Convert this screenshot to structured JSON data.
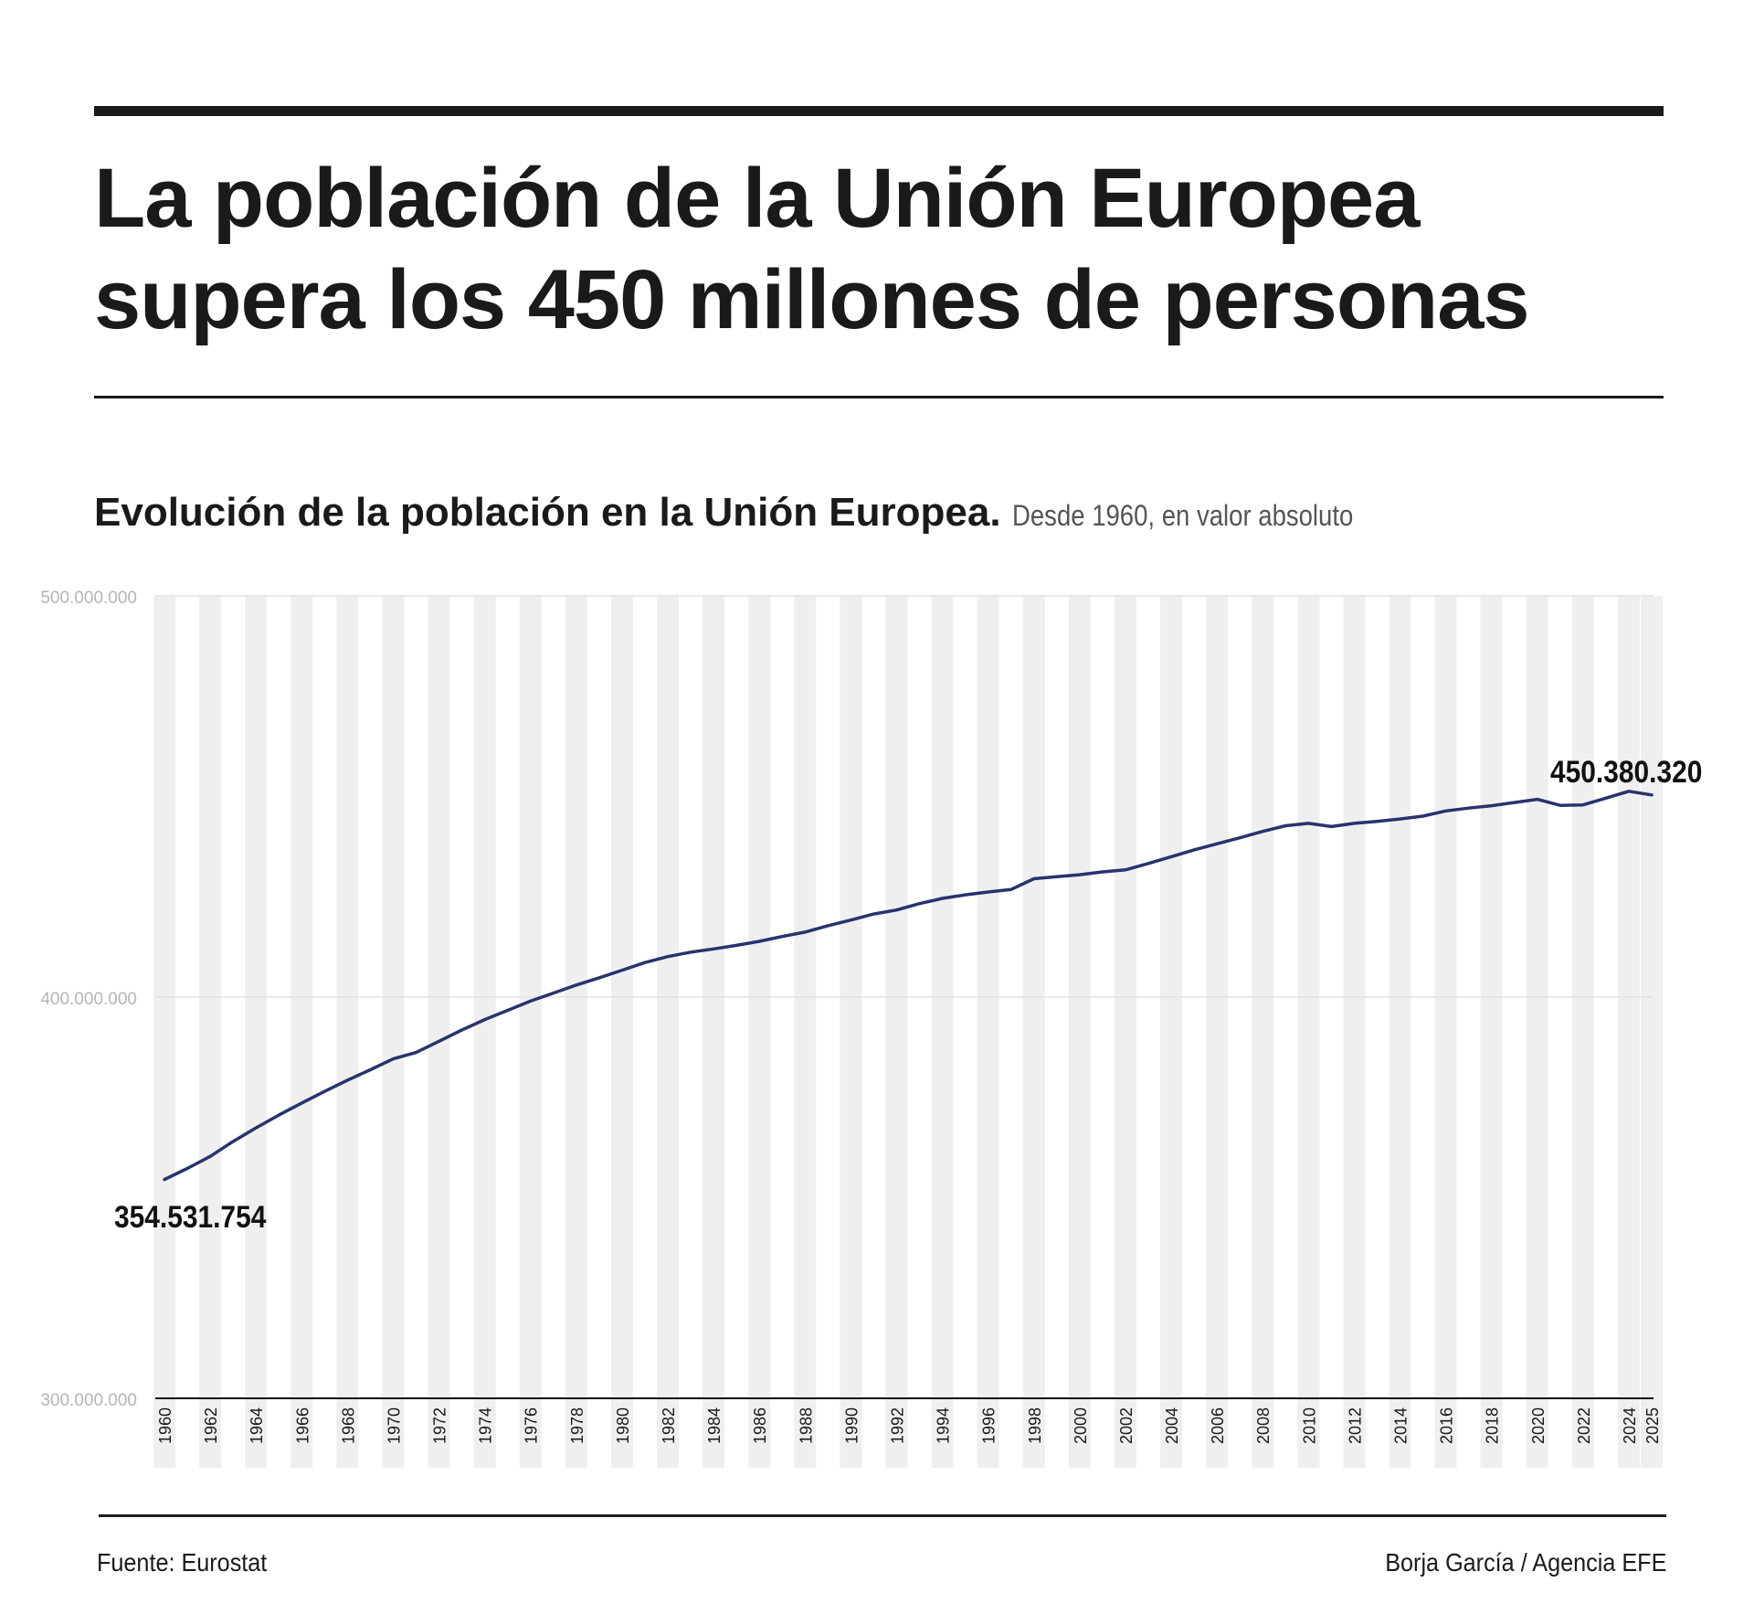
{
  "headline": {
    "line1": "La población de la Unión Europea",
    "line2": "supera los 450 millones de personas"
  },
  "chart_heading": {
    "title": "Evolución de la población en la Unión Europea.",
    "subtitle": "Desde 1960, en valor absoluto"
  },
  "footer": {
    "source": "Fuente: Eurostat",
    "credit": "Borja García / Agencia EFE"
  },
  "chart_data": {
    "type": "line",
    "title": "Evolución de la población en la Unión Europea.",
    "subtitle": "Desde 1960, en valor absoluto",
    "xlabel": "",
    "ylabel": "",
    "ylim": [
      300000000,
      500000000
    ],
    "yticks": [
      {
        "value": 300000000,
        "label": "300.000.000"
      },
      {
        "value": 400000000,
        "label": "400.000.000"
      },
      {
        "value": 500000000,
        "label": "500.000.000"
      }
    ],
    "grid": true,
    "line_color": "#28336e",
    "stripe_color": "#efefef",
    "x": [
      1960,
      1961,
      1962,
      1963,
      1964,
      1965,
      1966,
      1967,
      1968,
      1969,
      1970,
      1971,
      1972,
      1973,
      1974,
      1975,
      1976,
      1977,
      1978,
      1979,
      1980,
      1981,
      1982,
      1983,
      1984,
      1985,
      1986,
      1987,
      1988,
      1989,
      1990,
      1991,
      1992,
      1993,
      1994,
      1995,
      1996,
      1997,
      1998,
      1999,
      2000,
      2001,
      2002,
      2003,
      2004,
      2005,
      2006,
      2007,
      2008,
      2009,
      2010,
      2011,
      2012,
      2013,
      2014,
      2015,
      2016,
      2017,
      2018,
      2019,
      2020,
      2021,
      2022,
      2023,
      2024,
      2025
    ],
    "xtick_labels": [
      "1960",
      "1962",
      "1964",
      "1966",
      "1968",
      "1970",
      "1972",
      "1974",
      "1976",
      "1978",
      "1980",
      "1982",
      "1984",
      "1986",
      "1988",
      "1990",
      "1992",
      "1994",
      "1996",
      "1998",
      "2000",
      "2002",
      "2004",
      "2006",
      "2008",
      "2010",
      "2012",
      "2014",
      "2016",
      "2018",
      "2020",
      "2022",
      "2024",
      "2025"
    ],
    "series": [
      {
        "values": [
          354531754,
          357300000,
          360300000,
          364000000,
          367400000,
          370600000,
          373600000,
          376500000,
          379300000,
          381900000,
          384600000,
          386200000,
          389000000,
          391800000,
          394400000,
          396700000,
          399000000,
          401000000,
          403000000,
          404800000,
          406700000,
          408600000,
          410100000,
          411200000,
          412000000,
          412900000,
          413900000,
          415100000,
          416200000,
          417800000,
          419200000,
          420700000,
          421700000,
          423300000,
          424600000,
          425500000,
          426200000,
          426800000,
          429500000,
          430000000,
          430500000,
          431200000,
          431700000,
          433300000,
          435000000,
          436700000,
          438200000,
          439700000,
          441300000,
          442700000,
          443300000,
          442500000,
          443300000,
          443800000,
          444400000,
          445100000,
          446400000,
          447100000,
          447700000,
          448500000,
          449300000,
          447800000,
          447900000,
          449600000,
          451300000,
          450380320
        ]
      }
    ],
    "annotations": [
      {
        "x": 1960,
        "label": "354.531.754"
      },
      {
        "x": 2025,
        "label": "450.380.320"
      }
    ]
  }
}
